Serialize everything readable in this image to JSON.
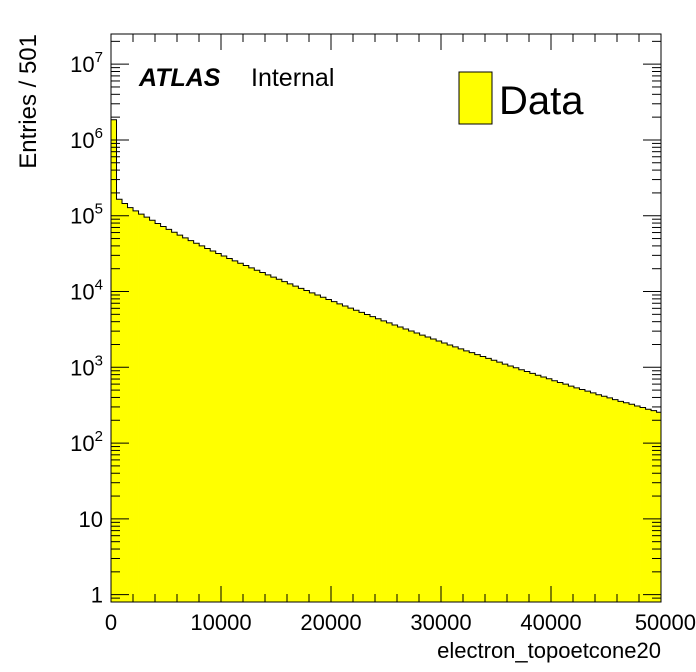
{
  "chart_data": {
    "type": "bar",
    "title": "",
    "xlabel": "electron_topoetcone20",
    "ylabel": "Entries / 501",
    "yscale": "log",
    "xlim": [
      0,
      50000
    ],
    "ylim": [
      0.8,
      25000000
    ],
    "bin_width": 501,
    "x_ticks": [
      {
        "value": 0,
        "label": "0"
      },
      {
        "value": 10000,
        "label": "10000"
      },
      {
        "value": 20000,
        "label": "20000"
      },
      {
        "value": 30000,
        "label": "30000"
      },
      {
        "value": 40000,
        "label": "40000"
      },
      {
        "value": 50000,
        "label": "50000"
      }
    ],
    "y_ticks": [
      {
        "value": 1,
        "base": "1",
        "exp": ""
      },
      {
        "value": 10,
        "base": "10",
        "exp": ""
      },
      {
        "value": 100,
        "base": "10",
        "exp": "2"
      },
      {
        "value": 1000,
        "base": "10",
        "exp": "3"
      },
      {
        "value": 10000,
        "base": "10",
        "exp": "4"
      },
      {
        "value": 100000,
        "base": "10",
        "exp": "5"
      },
      {
        "value": 1000000,
        "base": "10",
        "exp": "6"
      },
      {
        "value": 10000000,
        "base": "10",
        "exp": "7"
      }
    ],
    "grid": false,
    "legend_position": "top-right",
    "series": [
      {
        "name": "Data",
        "color": "#ffff00",
        "edge_color": "#000000",
        "values": [
          1850000,
          165000,
          145000,
          128000,
          116000,
          105000,
          96000,
          87000,
          79000,
          72000,
          66000,
          60500,
          55500,
          51000,
          47000,
          43300,
          40000,
          37000,
          34200,
          31700,
          29400,
          27300,
          25400,
          23600,
          22000,
          20500,
          19100,
          17800,
          16600,
          15500,
          14500,
          13500,
          12600,
          11800,
          11000,
          10300,
          9600,
          9000,
          8400,
          7850,
          7350,
          6880,
          6440,
          6030,
          5650,
          5300,
          4970,
          4660,
          4370,
          4100,
          3850,
          3620,
          3400,
          3200,
          3010,
          2830,
          2660,
          2510,
          2360,
          2220,
          2090,
          1970,
          1860,
          1750,
          1650,
          1560,
          1470,
          1390,
          1310,
          1240,
          1170,
          1100,
          1040,
          985,
          930,
          880,
          830,
          785,
          745,
          705,
          665,
          630,
          600,
          565,
          535,
          510,
          485,
          460,
          435,
          415,
          395,
          375,
          355,
          340,
          325,
          308,
          295,
          280,
          268,
          255
        ]
      }
    ],
    "annotations": [
      {
        "bold": "ATLAS",
        "text": "Internal"
      }
    ]
  }
}
